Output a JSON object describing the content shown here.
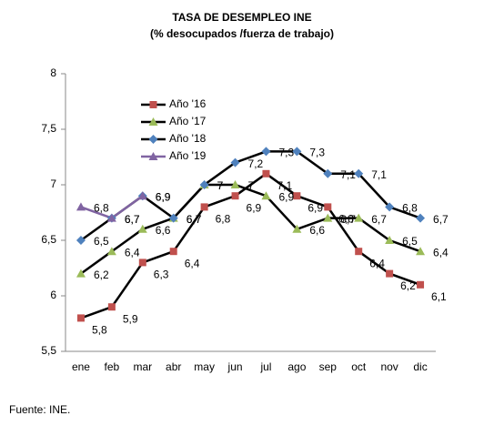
{
  "chart_data": {
    "type": "line",
    "title": "TASA DE DESEMPLEO INE",
    "subtitle": "(% desocupados /fuerza de trabajo)",
    "source": "Fuente: INE.",
    "categories": [
      "ene",
      "feb",
      "mar",
      "abr",
      "may",
      "jun",
      "jul",
      "ago",
      "sep",
      "oct",
      "nov",
      "dic"
    ],
    "ylim": [
      5.5,
      8
    ],
    "yticks": [
      {
        "value": 5.5,
        "label": "5,5"
      },
      6,
      {
        "value": 6.5,
        "label": "6,5"
      },
      7,
      {
        "value": 7.5,
        "label": "7,5"
      },
      8
    ],
    "grid": false,
    "legend": "upper left",
    "series": [
      {
        "name": "Año '16",
        "color": "#c0504d",
        "line_color": "#000000",
        "marker": "square",
        "values": [
          5.8,
          5.9,
          6.3,
          6.4,
          6.8,
          6.9,
          7.1,
          6.9,
          6.8,
          6.4,
          6.2,
          6.1
        ],
        "value_labels": [
          "5,8",
          "5,9",
          "6,3",
          "6,4",
          "6,8",
          "6,9",
          "7,1",
          "6,9",
          "6,8",
          "6,4",
          "6,2",
          "6,1"
        ]
      },
      {
        "name": "Año '17",
        "color": "#9bbb59",
        "line_color": "#000000",
        "marker": "triangle",
        "values": [
          6.2,
          6.4,
          6.6,
          6.7,
          7.0,
          7.0,
          6.9,
          6.6,
          6.7,
          6.7,
          6.5,
          6.4
        ],
        "value_labels": [
          "6,2",
          "6,4",
          "6,6",
          "6,7",
          "7",
          "7",
          "6,9",
          "6,6",
          "6,7",
          "6,7",
          "6,5",
          "6,4"
        ]
      },
      {
        "name": "Año '18",
        "color": "#4f81bd",
        "line_color": "#000000",
        "marker": "diamond",
        "values": [
          6.5,
          6.7,
          6.9,
          6.7,
          7.0,
          7.2,
          7.3,
          7.3,
          7.1,
          7.1,
          6.8,
          6.7
        ],
        "value_labels": [
          "6,5",
          "6,7",
          "6,9",
          "6,7",
          "7",
          "7,2",
          "7,3",
          "7,3",
          "7,1",
          "7,1",
          "6,8",
          "6,7"
        ]
      },
      {
        "name": "Año '19",
        "color": "#8064a2",
        "line_color": "#8064a2",
        "marker": "triangle",
        "values": [
          6.8,
          6.7,
          6.9,
          null,
          null,
          null,
          null,
          null,
          null,
          null,
          null,
          null
        ],
        "value_labels": [
          "6,8",
          "6,7",
          "6,9",
          null,
          null,
          null,
          null,
          null,
          null,
          null,
          null,
          null
        ]
      }
    ]
  }
}
